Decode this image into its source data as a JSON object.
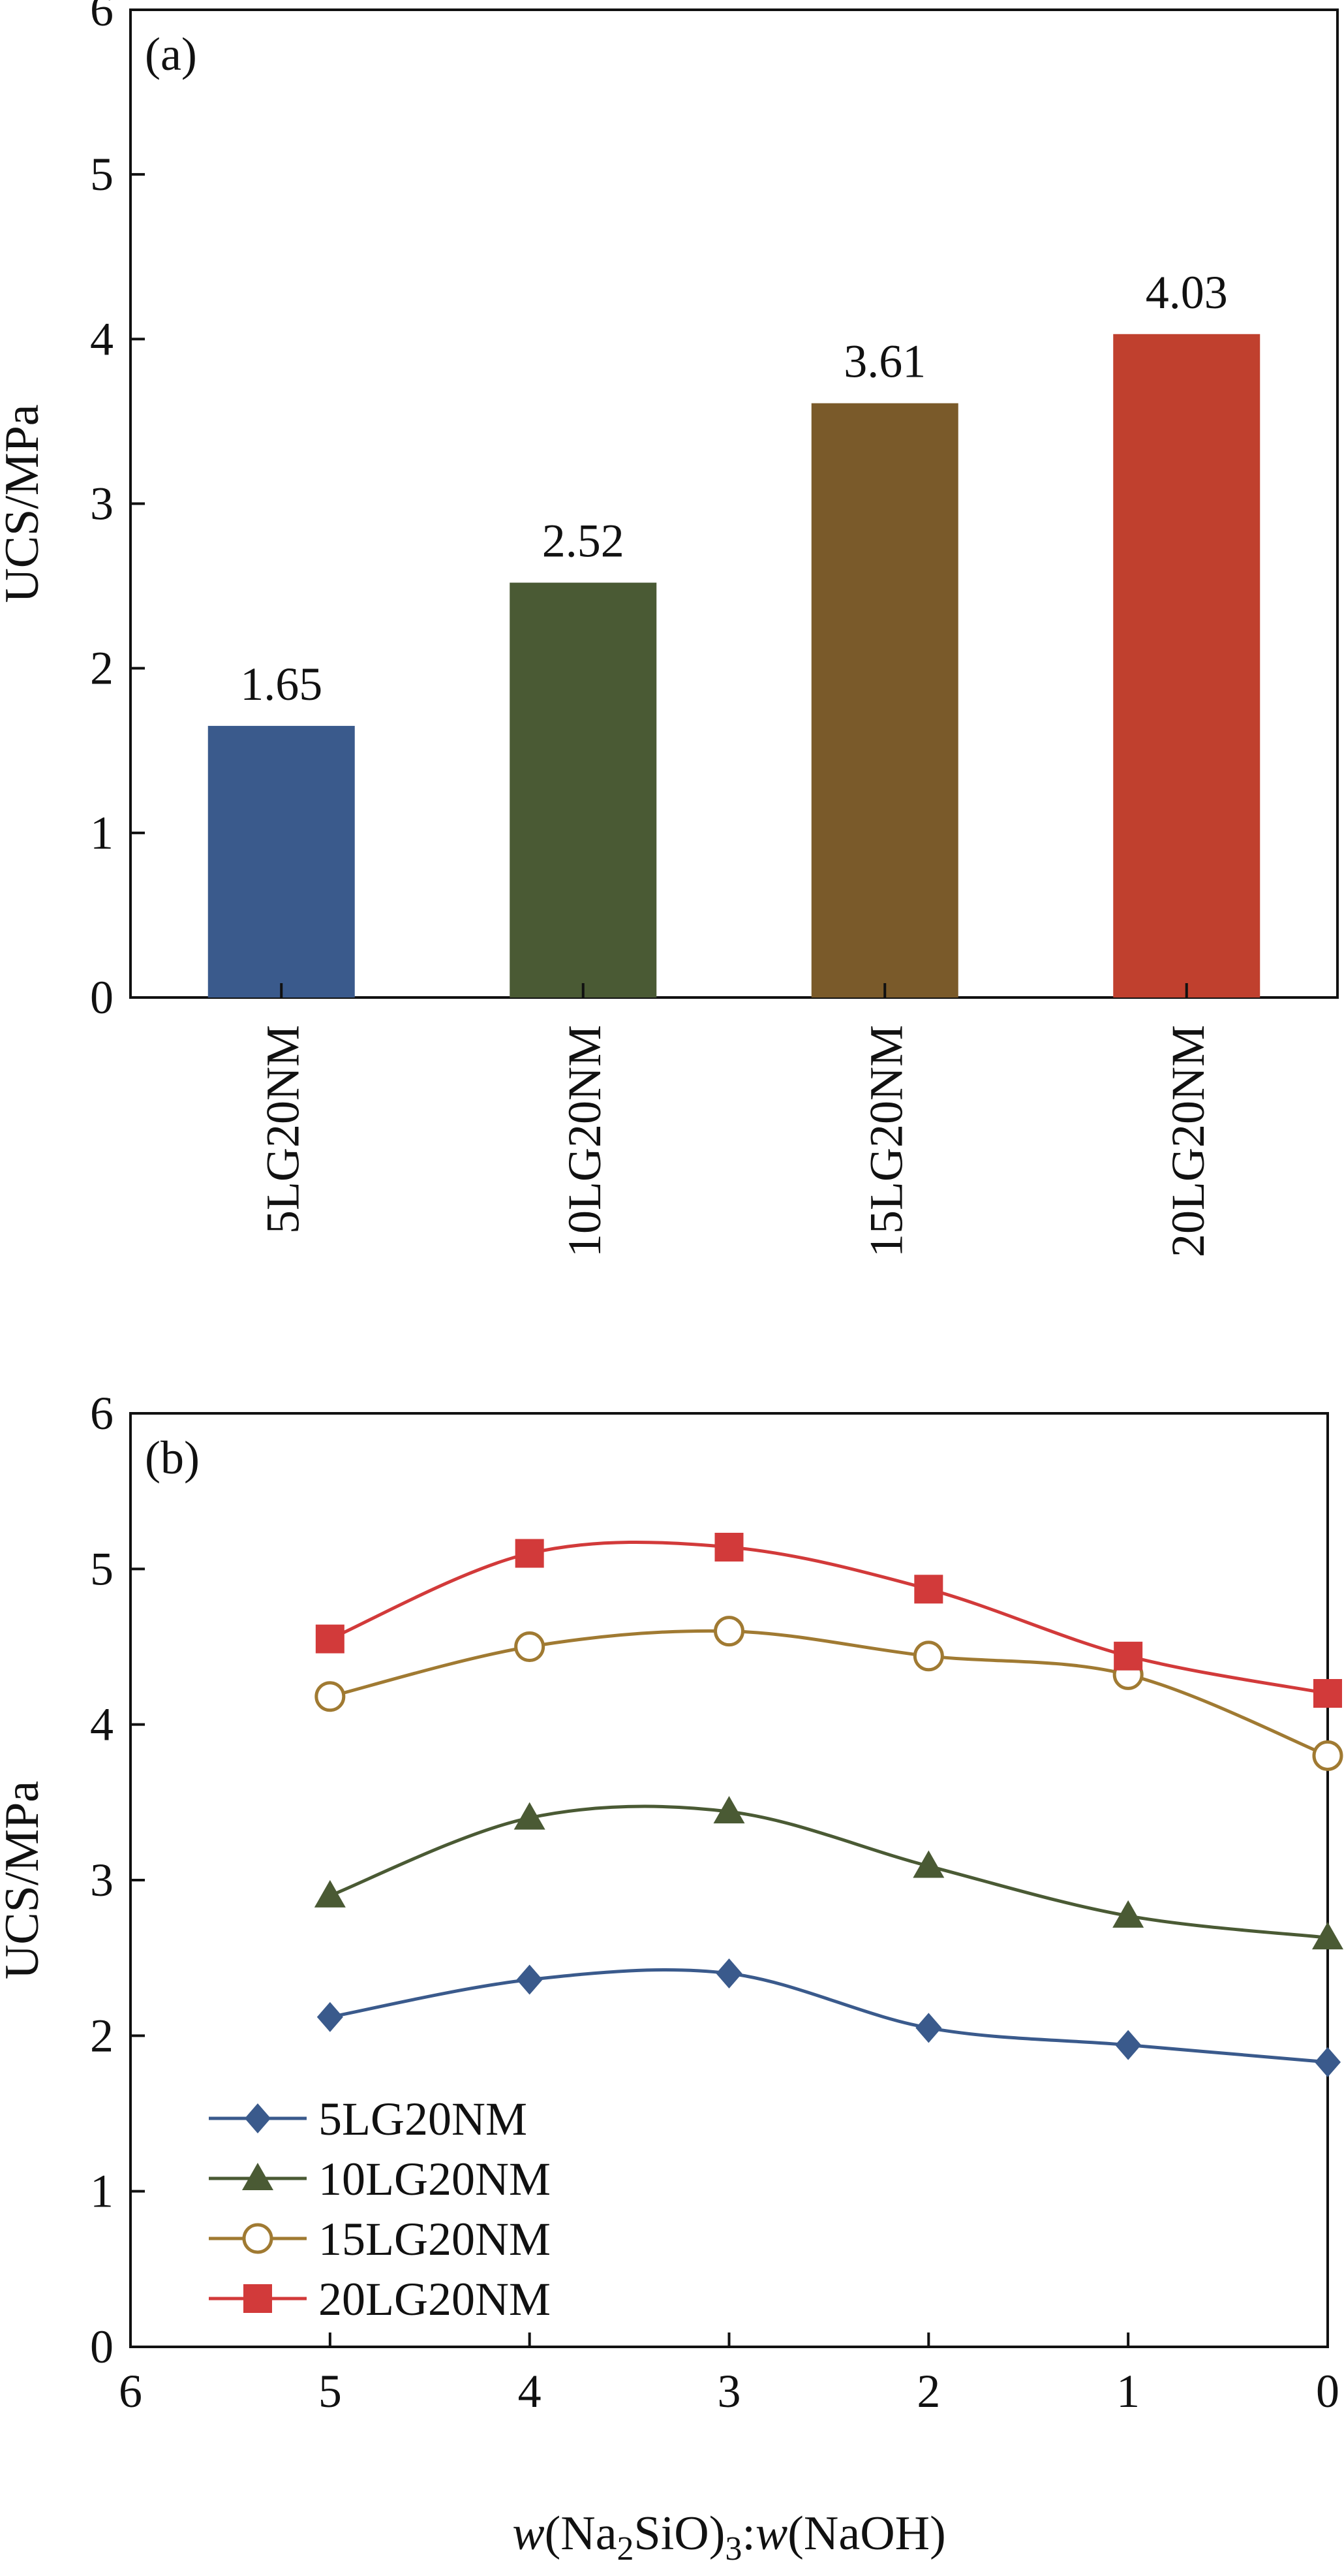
{
  "chart_data": [
    {
      "type": "bar",
      "panel_label": "(a)",
      "title": "",
      "xlabel": "",
      "ylabel": "UCS/MPa",
      "ylim": [
        0,
        6
      ],
      "yticks": [
        "0",
        "1",
        "2",
        "3",
        "4",
        "5",
        "6"
      ],
      "categories": [
        "5LG20NM",
        "10LG20NM",
        "15LG20NM",
        "20LG20NM"
      ],
      "values": [
        1.65,
        2.52,
        3.61,
        4.03
      ],
      "value_labels": [
        "1.65",
        "2.52",
        "3.61",
        "4.03"
      ],
      "colors": [
        "#3a5a8c",
        "#4a5a34",
        "#7a5a2a",
        "#c0402e"
      ],
      "grid": false
    },
    {
      "type": "line",
      "panel_label": "(b)",
      "title": "",
      "ylabel": "UCS/MPa",
      "xlabel": {
        "prefix": "w",
        "open": "(Na",
        "sub1": "2",
        "mid": "SiO)",
        "sub2": "3",
        "colon": ":",
        "w2": "w",
        "suffix": "(NaOH)"
      },
      "xlim": [
        6,
        0
      ],
      "ylim": [
        0,
        6
      ],
      "xticks": [
        "6",
        "5",
        "4",
        "3",
        "2",
        "1",
        "0"
      ],
      "yticks": [
        "0",
        "1",
        "2",
        "3",
        "4",
        "5",
        "6"
      ],
      "x": [
        5,
        4,
        3,
        2,
        1,
        0
      ],
      "series": [
        {
          "name": "5LG20NM",
          "marker": "diamond",
          "color": "#3a5a8c",
          "values": [
            2.12,
            2.36,
            2.4,
            2.05,
            1.94,
            1.83
          ]
        },
        {
          "name": "10LG20NM",
          "marker": "triangle",
          "color": "#4a5a34",
          "values": [
            2.9,
            3.4,
            3.44,
            3.09,
            2.77,
            2.63
          ]
        },
        {
          "name": "15LG20NM",
          "marker": "open-circle",
          "color": "#a07a32",
          "values": [
            4.18,
            4.5,
            4.6,
            4.44,
            4.32,
            3.8
          ]
        },
        {
          "name": "20LG20NM",
          "marker": "square",
          "color": "#d23a3a",
          "values": [
            4.55,
            5.1,
            5.14,
            4.87,
            4.44,
            4.2
          ]
        }
      ],
      "legend_position": "bottom-left",
      "grid": false
    }
  ]
}
